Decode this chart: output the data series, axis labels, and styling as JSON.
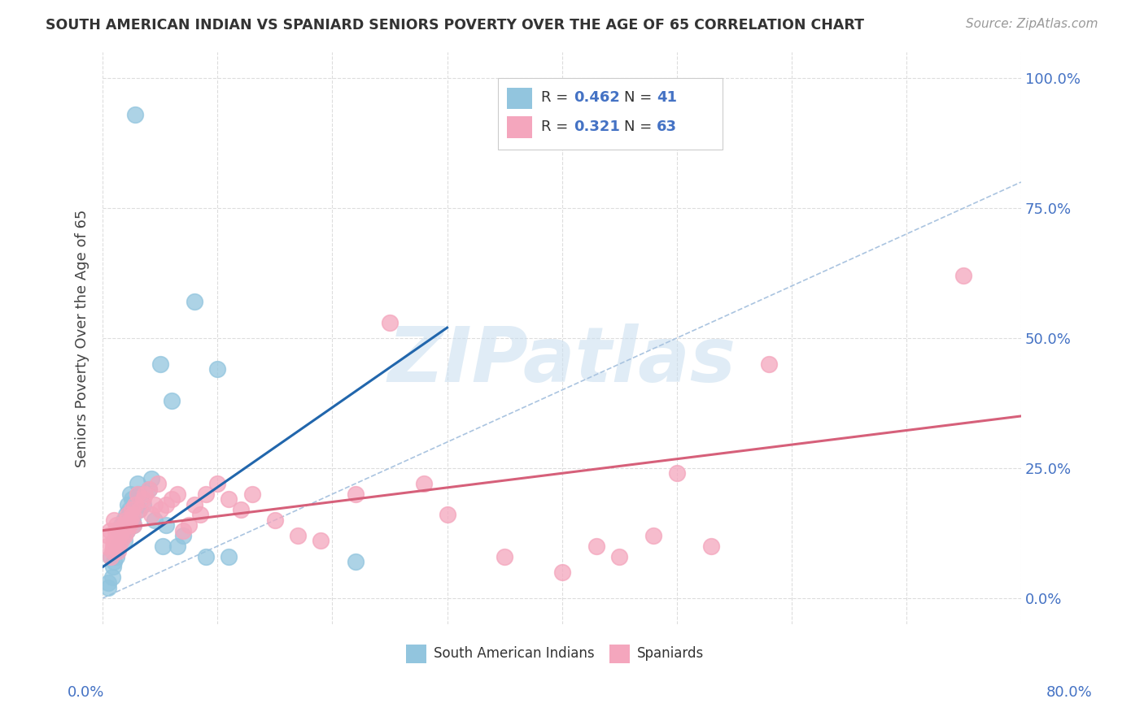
{
  "title": "SOUTH AMERICAN INDIAN VS SPANIARD SENIORS POVERTY OVER THE AGE OF 65 CORRELATION CHART",
  "source": "Source: ZipAtlas.com",
  "ylabel": "Seniors Poverty Over the Age of 65",
  "ytick_labels": [
    "0.0%",
    "25.0%",
    "50.0%",
    "75.0%",
    "100.0%"
  ],
  "ytick_values": [
    0,
    0.25,
    0.5,
    0.75,
    1.0
  ],
  "xmin": 0.0,
  "xmax": 0.8,
  "ymin": -0.05,
  "ymax": 1.05,
  "blue_color": "#92c5de",
  "pink_color": "#f4a6bd",
  "blue_line_color": "#2166ac",
  "pink_line_color": "#d6607a",
  "diag_color": "#aac4e0",
  "legend_text_color": "#3a3a3a",
  "legend_value_color": "#4472c4",
  "watermark_color": "#cce0f0",
  "blue_x": [
    0.028,
    0.005,
    0.005,
    0.007,
    0.008,
    0.009,
    0.01,
    0.011,
    0.012,
    0.013,
    0.015,
    0.016,
    0.017,
    0.018,
    0.019,
    0.02,
    0.021,
    0.022,
    0.023,
    0.024,
    0.025,
    0.026,
    0.027,
    0.03,
    0.031,
    0.032,
    0.035,
    0.04,
    0.042,
    0.045,
    0.05,
    0.052,
    0.055,
    0.06,
    0.065,
    0.07,
    0.08,
    0.09,
    0.1,
    0.11,
    0.22
  ],
  "blue_y": [
    0.93,
    0.03,
    0.02,
    0.08,
    0.04,
    0.06,
    0.07,
    0.09,
    0.08,
    0.1,
    0.13,
    0.14,
    0.12,
    0.15,
    0.11,
    0.16,
    0.13,
    0.18,
    0.17,
    0.2,
    0.19,
    0.15,
    0.14,
    0.22,
    0.2,
    0.17,
    0.18,
    0.21,
    0.23,
    0.15,
    0.45,
    0.1,
    0.14,
    0.38,
    0.1,
    0.12,
    0.57,
    0.08,
    0.44,
    0.08,
    0.07
  ],
  "pink_x": [
    0.003,
    0.005,
    0.006,
    0.007,
    0.008,
    0.009,
    0.01,
    0.01,
    0.011,
    0.012,
    0.013,
    0.014,
    0.015,
    0.016,
    0.017,
    0.018,
    0.019,
    0.02,
    0.021,
    0.022,
    0.023,
    0.024,
    0.025,
    0.026,
    0.027,
    0.028,
    0.03,
    0.032,
    0.035,
    0.037,
    0.04,
    0.042,
    0.045,
    0.048,
    0.05,
    0.055,
    0.06,
    0.065,
    0.07,
    0.075,
    0.08,
    0.085,
    0.09,
    0.1,
    0.11,
    0.12,
    0.13,
    0.15,
    0.17,
    0.19,
    0.22,
    0.25,
    0.28,
    0.3,
    0.35,
    0.4,
    0.43,
    0.45,
    0.48,
    0.5,
    0.53,
    0.58,
    0.75
  ],
  "pink_y": [
    0.1,
    0.12,
    0.13,
    0.08,
    0.09,
    0.1,
    0.11,
    0.15,
    0.13,
    0.14,
    0.09,
    0.1,
    0.12,
    0.11,
    0.13,
    0.14,
    0.12,
    0.15,
    0.13,
    0.16,
    0.14,
    0.15,
    0.17,
    0.16,
    0.14,
    0.18,
    0.2,
    0.17,
    0.19,
    0.2,
    0.21,
    0.16,
    0.18,
    0.22,
    0.17,
    0.18,
    0.19,
    0.2,
    0.13,
    0.14,
    0.18,
    0.16,
    0.2,
    0.22,
    0.19,
    0.17,
    0.2,
    0.15,
    0.12,
    0.11,
    0.2,
    0.53,
    0.22,
    0.16,
    0.08,
    0.05,
    0.1,
    0.08,
    0.12,
    0.24,
    0.1,
    0.45,
    0.62
  ],
  "blue_line_x": [
    0.0,
    0.3
  ],
  "blue_line_y_start": 0.06,
  "blue_line_y_end": 0.52,
  "pink_line_x": [
    0.0,
    0.8
  ],
  "pink_line_y_start": 0.13,
  "pink_line_y_end": 0.35
}
